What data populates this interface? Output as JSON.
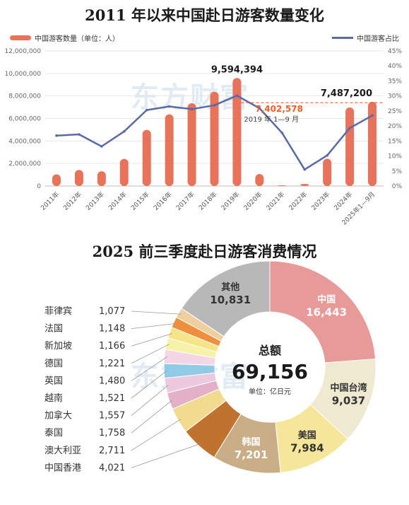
{
  "chart_data": [
    {
      "type": "bar",
      "title": "2011 年以来中国赴日游客数量变化",
      "legend": [
        "中国游客数量（单位：人）",
        "中国游客占比"
      ],
      "categories": [
        "2011年",
        "2012年",
        "2013年",
        "2014年",
        "2015年",
        "2016年",
        "2017年",
        "2018年",
        "2019年",
        "2020年",
        "2021年",
        "2022年",
        "2023年",
        "2024年",
        "2025年1—9月"
      ],
      "series": [
        {
          "name": "中国游客数量（单位：人）",
          "type": "bar",
          "color": "#e8735a",
          "values": [
            1040000,
            1430000,
            1310000,
            2410000,
            4990000,
            6370000,
            7360000,
            8380000,
            9594394,
            1070000,
            42000,
            189000,
            2430000,
            6980000,
            7487200
          ]
        },
        {
          "name": "中国游客占比",
          "type": "line",
          "axis": "right",
          "color": "#5a6aa8",
          "values": [
            16.8,
            17.2,
            13.2,
            18.2,
            25.3,
            26.5,
            25.6,
            26.9,
            30.1,
            25.9,
            17.7,
            5.5,
            10.2,
            19.3,
            23.5
          ]
        }
      ],
      "ylim": [
        0,
        12000000
      ],
      "yticks": [
        "12,000,000",
        "10,000,000",
        "8,000,000",
        "6,000,000",
        "4,000,000",
        "2,000,000",
        "0"
      ],
      "y2lim": [
        0,
        45
      ],
      "y2ticks": [
        "45%",
        "40%",
        "35%",
        "30%",
        "25%",
        "20%",
        "15%",
        "10%",
        "5%",
        "0%"
      ],
      "annotations": [
        {
          "label": "9,594,394",
          "value": 9594394,
          "category": "2019年"
        },
        {
          "label": "7,487,200",
          "value": 7487200,
          "category": "2025年1—9月"
        },
        {
          "label": "7,402,578",
          "value": 7402578,
          "category": "2020年",
          "note": "2019 年 1—9 月",
          "reference_line": true
        }
      ],
      "watermark": "东方财富"
    },
    {
      "type": "pie",
      "title": "2025 前三季度赴日游客消费情况",
      "center_label": "总额",
      "center_value": "69,156",
      "center_unit": "单位：亿日元",
      "slices": [
        {
          "label": "中国",
          "display": "16,443",
          "value": 16443,
          "color": "#e89a98",
          "text": "#ffffff"
        },
        {
          "label": "中国台湾",
          "display": "9,037",
          "value": 9037,
          "color": "#efe9d2",
          "text": "#333333"
        },
        {
          "label": "美国",
          "display": "7,984",
          "value": 7984,
          "color": "#f5e69a",
          "text": "#333333"
        },
        {
          "label": "韩国",
          "display": "7,201",
          "value": 7201,
          "color": "#c8ad87",
          "text": "#ffffff"
        },
        {
          "label": "中国香港",
          "display": "4,021",
          "value": 4021,
          "color": "#c0732f"
        },
        {
          "label": "澳大利亚",
          "display": "2,711",
          "value": 2711,
          "color": "#f2db8e"
        },
        {
          "label": "泰国",
          "display": "1,758",
          "value": 1758,
          "color": "#e3b0c8"
        },
        {
          "label": "加拿大",
          "display": "1,557",
          "value": 1557,
          "color": "#ecc9de"
        },
        {
          "label": "越南",
          "display": "1,521",
          "value": 1521,
          "color": "#8fcbe5"
        },
        {
          "label": "英国",
          "display": "1,480",
          "value": 1480,
          "color": "#f4d7e6"
        },
        {
          "label": "德国",
          "display": "1,221",
          "value": 1221,
          "color": "#f6f2a8"
        },
        {
          "label": "新加坡",
          "display": "1,166",
          "value": 1166,
          "color": "#f6e488"
        },
        {
          "label": "法国",
          "display": "1,148",
          "value": 1148,
          "color": "#ef8f3d"
        },
        {
          "label": "菲律宾",
          "display": "1,077",
          "value": 1077,
          "color": "#f0cf9e"
        },
        {
          "label": "其他",
          "display": "10,831",
          "value": 10831,
          "color": "#b8b8b8",
          "text": "#333333"
        }
      ],
      "watermark": "东方财富"
    }
  ]
}
